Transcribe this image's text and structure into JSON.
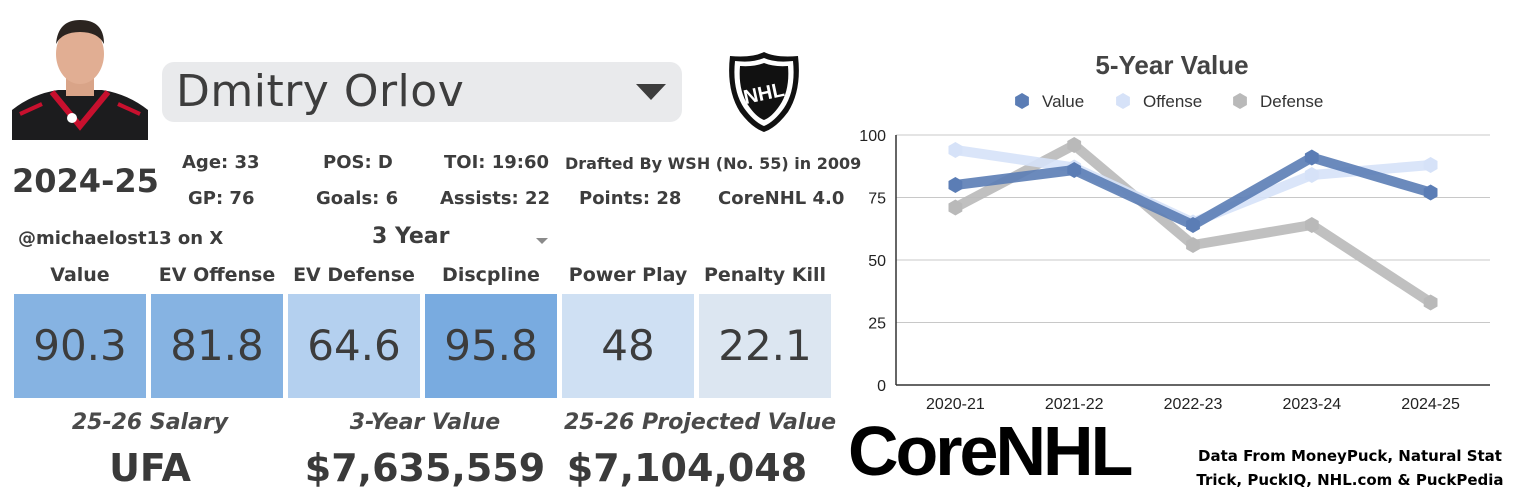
{
  "player": {
    "name": "Dmitry Orlov",
    "season": "2024-25",
    "stats_row1": [
      "Age: 33",
      "POS: D",
      "TOI: 19:60",
      "Drafted By WSH (No. 55) in 2009"
    ],
    "stats_row2": [
      "GP: 76",
      "Goals: 6",
      "Assists: 22",
      "Points: 28",
      "CoreNHL 4.0"
    ],
    "handle": "@michaelost13 on X",
    "period": "3 Year"
  },
  "ratings": [
    {
      "label": "Value",
      "value": "90.3",
      "color": "#86b3e2"
    },
    {
      "label": "EV Offense",
      "value": "81.8",
      "color": "#86b3e2"
    },
    {
      "label": "EV Defense",
      "value": "64.6",
      "color": "#b4d0ef"
    },
    {
      "label": "Discpline",
      "value": "95.8",
      "color": "#79abe0"
    },
    {
      "label": "Power Play",
      "value": "48",
      "color": "#cfe0f3"
    },
    {
      "label": "Penalty Kill",
      "value": "22.1",
      "color": "#dce6f1"
    }
  ],
  "financials": [
    {
      "label": "25-26 Salary",
      "value": "UFA"
    },
    {
      "label": "3-Year Value",
      "value": "$7,635,559"
    },
    {
      "label": "25-26 Projected Value",
      "value": "$7,104,048"
    }
  ],
  "brand": "CoreNHL",
  "credit_lines": [
    "Data From MoneyPuck, Natural Stat",
    "Trick, PuckIQ, NHL.com & PuckPedia"
  ],
  "logo_icon": "nhl-shield-logo",
  "chart_data": {
    "type": "line",
    "title": "5-Year Value",
    "categories": [
      "2020-21",
      "2021-22",
      "2022-23",
      "2023-24",
      "2024-25"
    ],
    "ylim": [
      0,
      100
    ],
    "yticks": [
      "0",
      "25",
      "50",
      "75",
      "100"
    ],
    "grid": true,
    "legend": "top",
    "series": [
      {
        "name": "Value",
        "values": [
          80,
          86,
          64,
          91,
          77
        ],
        "color": "#5b7db5"
      },
      {
        "name": "Offense",
        "values": [
          94,
          87,
          65,
          84,
          88
        ],
        "color": "#d6e2f8"
      },
      {
        "name": "Defense",
        "values": [
          71,
          96,
          56,
          64,
          33
        ],
        "color": "#b9b9b9"
      }
    ]
  }
}
